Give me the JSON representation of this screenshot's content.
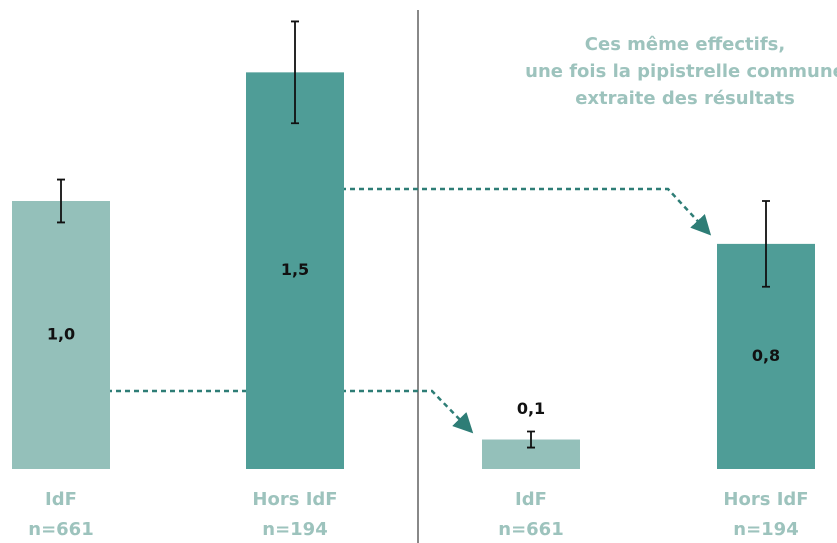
{
  "chart_data": [
    {
      "type": "bar",
      "categories": [
        "IdF",
        "Hors IdF"
      ],
      "sample_sizes": [
        "n=661",
        "n=194"
      ],
      "values": [
        1.0,
        1.48
      ],
      "value_labels": [
        "1,0",
        "1,5"
      ],
      "errors": [
        0.08,
        0.19
      ],
      "colors": [
        "#94c0ba",
        "#4f9d97"
      ],
      "ylim": [
        0,
        1.75
      ]
    },
    {
      "type": "bar",
      "annotation": [
        "Ces même effectifs,",
        "une fois la pipistrelle commune",
        "extraite des résultats"
      ],
      "categories": [
        "IdF",
        "Hors IdF"
      ],
      "sample_sizes": [
        "n=661",
        "n=194"
      ],
      "values": [
        0.11,
        0.84
      ],
      "value_labels": [
        "0,1",
        "0,8"
      ],
      "errors": [
        0.03,
        0.16
      ],
      "colors": [
        "#94c0ba",
        "#4f9d97"
      ],
      "ylim": [
        0,
        1.75
      ]
    }
  ]
}
